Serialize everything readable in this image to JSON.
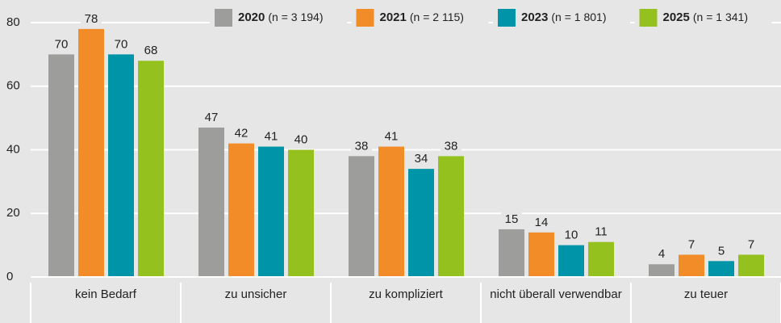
{
  "chart_data": {
    "type": "bar",
    "categories": [
      "kein Bedarf",
      "zu unsicher",
      "zu kompliziert",
      "nicht überall verwendbar",
      "zu teuer"
    ],
    "series": [
      {
        "name": "2020",
        "n": "(n = 3 194)",
        "color": "#9d9d9c",
        "values": [
          70,
          47,
          38,
          15,
          4
        ]
      },
      {
        "name": "2021",
        "n": "(n = 2 115)",
        "color": "#f28c28",
        "values": [
          78,
          42,
          41,
          14,
          7
        ]
      },
      {
        "name": "2023",
        "n": "(n = 1 801)",
        "color": "#0094a8",
        "values": [
          70,
          41,
          34,
          10,
          5
        ]
      },
      {
        "name": "2025",
        "n": "(n = 1 341)",
        "color": "#95c11f",
        "values": [
          68,
          40,
          38,
          11,
          7
        ]
      }
    ],
    "ylim": [
      0,
      80
    ],
    "yticks": [
      0,
      20,
      40,
      60,
      80
    ],
    "grid": true,
    "legend": "top"
  }
}
